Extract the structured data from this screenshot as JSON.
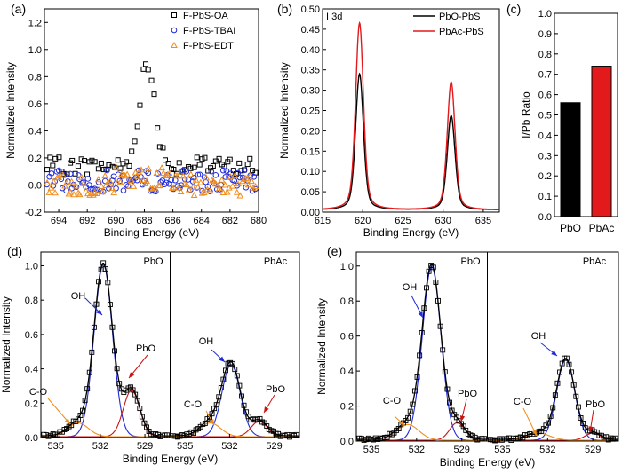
{
  "colors": {
    "black": "#000000",
    "red": "#e31a1c",
    "blue": "#1f2bd8",
    "orange": "#f08c1a",
    "darkred": "#cc1111"
  },
  "chart_data": [
    {
      "panel_label": "(a)",
      "type": "scatter",
      "xlabel": "Binding Energy (eV)",
      "ylabel": "Normalized Intensity",
      "xlim": [
        695,
        680
      ],
      "ylim": [
        -0.2,
        1.3
      ],
      "xticks": [
        694,
        692,
        690,
        688,
        686,
        684,
        682,
        680
      ],
      "yticks": [
        -0.2,
        0.0,
        0.2,
        0.4,
        0.6,
        0.8,
        1.0,
        1.2
      ],
      "legend_position": "top-right",
      "series": [
        {
          "name": "F-PbS-OA",
          "marker": "square",
          "color": "#000000",
          "peak_center": 687.8,
          "peak_height": 0.75,
          "baseline": 0.14
        },
        {
          "name": "F-PbS-TBAI",
          "marker": "circle",
          "color": "#1f2bd8",
          "baseline": 0.03
        },
        {
          "name": "F-PbS-EDT",
          "marker": "triangle",
          "color": "#f08c1a",
          "baseline": 0.0
        }
      ]
    },
    {
      "panel_label": "(b)",
      "type": "line",
      "annotation": "I 3d",
      "xlabel": "Binding Energy (eV)",
      "ylabel": "Normalized Intensity",
      "xlim": [
        615,
        637
      ],
      "ylim": [
        0,
        0.5
      ],
      "xticks": [
        615,
        620,
        625,
        630,
        635
      ],
      "yticks": [
        0.0,
        0.05,
        0.1,
        0.15,
        0.2,
        0.25,
        0.3,
        0.35,
        0.4,
        0.45,
        0.5
      ],
      "legend_position": "top-right",
      "series": [
        {
          "name": "PbO-PbS",
          "color": "#000000",
          "peaks": [
            {
              "x": 619.6,
              "y": 0.335
            },
            {
              "x": 631.0,
              "y": 0.232
            }
          ]
        },
        {
          "name": "PbAc-PbS",
          "color": "#e31a1c",
          "peaks": [
            {
              "x": 619.6,
              "y": 0.46
            },
            {
              "x": 631.0,
              "y": 0.315
            }
          ]
        }
      ]
    },
    {
      "panel_label": "(c)",
      "type": "bar",
      "ylabel": "I/Pb Ratio",
      "ylim": [
        0,
        1.0
      ],
      "yticks": [
        0.0,
        0.1,
        0.2,
        0.3,
        0.4,
        0.5,
        0.6,
        0.7,
        0.8,
        0.9,
        1.0
      ],
      "categories": [
        "PbO",
        "PbAc"
      ],
      "values": [
        0.56,
        0.74
      ],
      "colors": [
        "#000000",
        "#e31a1c"
      ]
    },
    {
      "panel_label": "(d)",
      "type": "line",
      "xlabel": "Binding Energy (eV)",
      "ylabel": "Normalized Intensity",
      "ylim": [
        0,
        1.08
      ],
      "yticks": [
        0.0,
        0.2,
        0.4,
        0.6,
        0.8,
        1.0
      ],
      "subpanels": [
        {
          "title": "PbO",
          "xlim": [
            536,
            527.3
          ],
          "xticks": [
            535,
            532,
            529
          ],
          "components": [
            {
              "name": "OH",
              "center": 531.8,
              "height": 1.0,
              "width": 0.62,
              "color": "#1f2bd8"
            },
            {
              "name": "PbO",
              "center": 529.9,
              "height": 0.27,
              "width": 0.55,
              "color": "#cc1111"
            },
            {
              "name": "C-O",
              "center": 533.5,
              "height": 0.08,
              "width": 0.7,
              "color": "#f08c1a"
            }
          ]
        },
        {
          "title": "PbAc",
          "xlim": [
            536,
            527.3
          ],
          "xticks": [
            535,
            532,
            529
          ],
          "components": [
            {
              "name": "OH",
              "center": 531.9,
              "height": 0.42,
              "width": 0.62,
              "color": "#1f2bd8"
            },
            {
              "name": "PbO",
              "center": 530.0,
              "height": 0.09,
              "width": 0.55,
              "color": "#cc1111"
            },
            {
              "name": "C-O",
              "center": 533.3,
              "height": 0.08,
              "width": 0.7,
              "color": "#f08c1a"
            }
          ]
        }
      ],
      "annotations": [
        "OH",
        "PbO",
        "C-O",
        "OH",
        "C-O",
        "PbO"
      ]
    },
    {
      "panel_label": "(e)",
      "type": "line",
      "xlabel": "Binding Energy (eV)",
      "ylabel": "Normalized Intensity",
      "ylim": [
        0,
        1.08
      ],
      "yticks": [
        0.0,
        0.2,
        0.4,
        0.6,
        0.8,
        1.0
      ],
      "subpanels": [
        {
          "title": "PbO",
          "xlim": [
            536,
            527.3
          ],
          "xticks": [
            535,
            532,
            529
          ],
          "components": [
            {
              "name": "OH",
              "center": 531.0,
              "height": 0.99,
              "width": 0.62,
              "color": "#1f2bd8"
            },
            {
              "name": "PbO",
              "center": 529.3,
              "height": 0.1,
              "width": 0.5,
              "color": "#cc1111"
            },
            {
              "name": "C-O",
              "center": 532.6,
              "height": 0.09,
              "width": 0.75,
              "color": "#f08c1a"
            }
          ]
        },
        {
          "title": "PbAc",
          "xlim": [
            536,
            527.3
          ],
          "xticks": [
            535,
            532,
            529
          ],
          "components": [
            {
              "name": "OH",
              "center": 530.8,
              "height": 0.46,
              "width": 0.6,
              "color": "#1f2bd8"
            },
            {
              "name": "PbO",
              "center": 529.0,
              "height": 0.04,
              "width": 0.5,
              "color": "#cc1111"
            },
            {
              "name": "C-O",
              "center": 532.6,
              "height": 0.04,
              "width": 0.75,
              "color": "#f08c1a"
            }
          ]
        }
      ],
      "annotations": [
        "OH",
        "C-O",
        "PbO",
        "OH",
        "C-O",
        "PbO"
      ]
    }
  ]
}
